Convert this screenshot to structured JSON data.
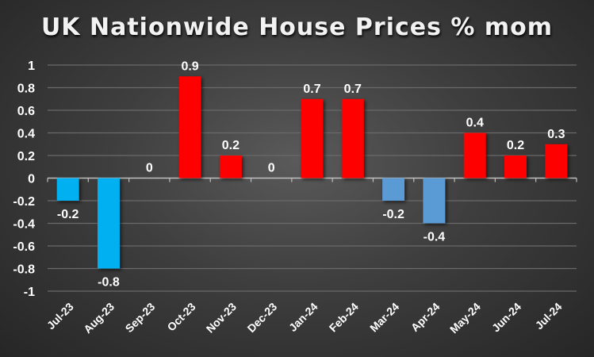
{
  "chart_data": {
    "type": "bar",
    "title": "UK Nationwide House Prices % mom",
    "xlabel": "",
    "ylabel": "",
    "ylim": [
      -1,
      1
    ],
    "yticks": [
      1,
      0.8,
      0.6,
      0.4,
      0.2,
      0,
      -0.2,
      -0.4,
      -0.6,
      -0.8,
      -1
    ],
    "ytick_labels": [
      "1",
      "0.8",
      "0.6",
      "0.4",
      "0.2",
      "0",
      "-0.2",
      "-0.4",
      "-0.6",
      "-0.8",
      "-1"
    ],
    "grid": true,
    "categories": [
      "Jul-23",
      "Aug-23",
      "Sep-23",
      "Oct-23",
      "Nov-23",
      "Dec-23",
      "Jan-24",
      "Feb-24",
      "Mar-24",
      "Apr-24",
      "May-24",
      "Jun-24",
      "Jul-24"
    ],
    "values": [
      -0.2,
      -0.8,
      0,
      0.9,
      0.2,
      0,
      0.7,
      0.7,
      -0.2,
      -0.4,
      0.4,
      0.2,
      0.3
    ],
    "data_labels": [
      "-0.2",
      "-0.8",
      "0",
      "0.9",
      "0.2",
      "0",
      "0.7",
      "0.7",
      "-0.2",
      "-0.4",
      "0.4",
      "0.2",
      "0.3"
    ],
    "bar_colors": [
      "#00B0F0",
      "#00B0F0",
      "#FF0000",
      "#FF0000",
      "#FF0000",
      "#FF0000",
      "#FF0000",
      "#FF0000",
      "#5B9BD5",
      "#5B9BD5",
      "#FF0000",
      "#FF0000",
      "#FF0000"
    ]
  }
}
